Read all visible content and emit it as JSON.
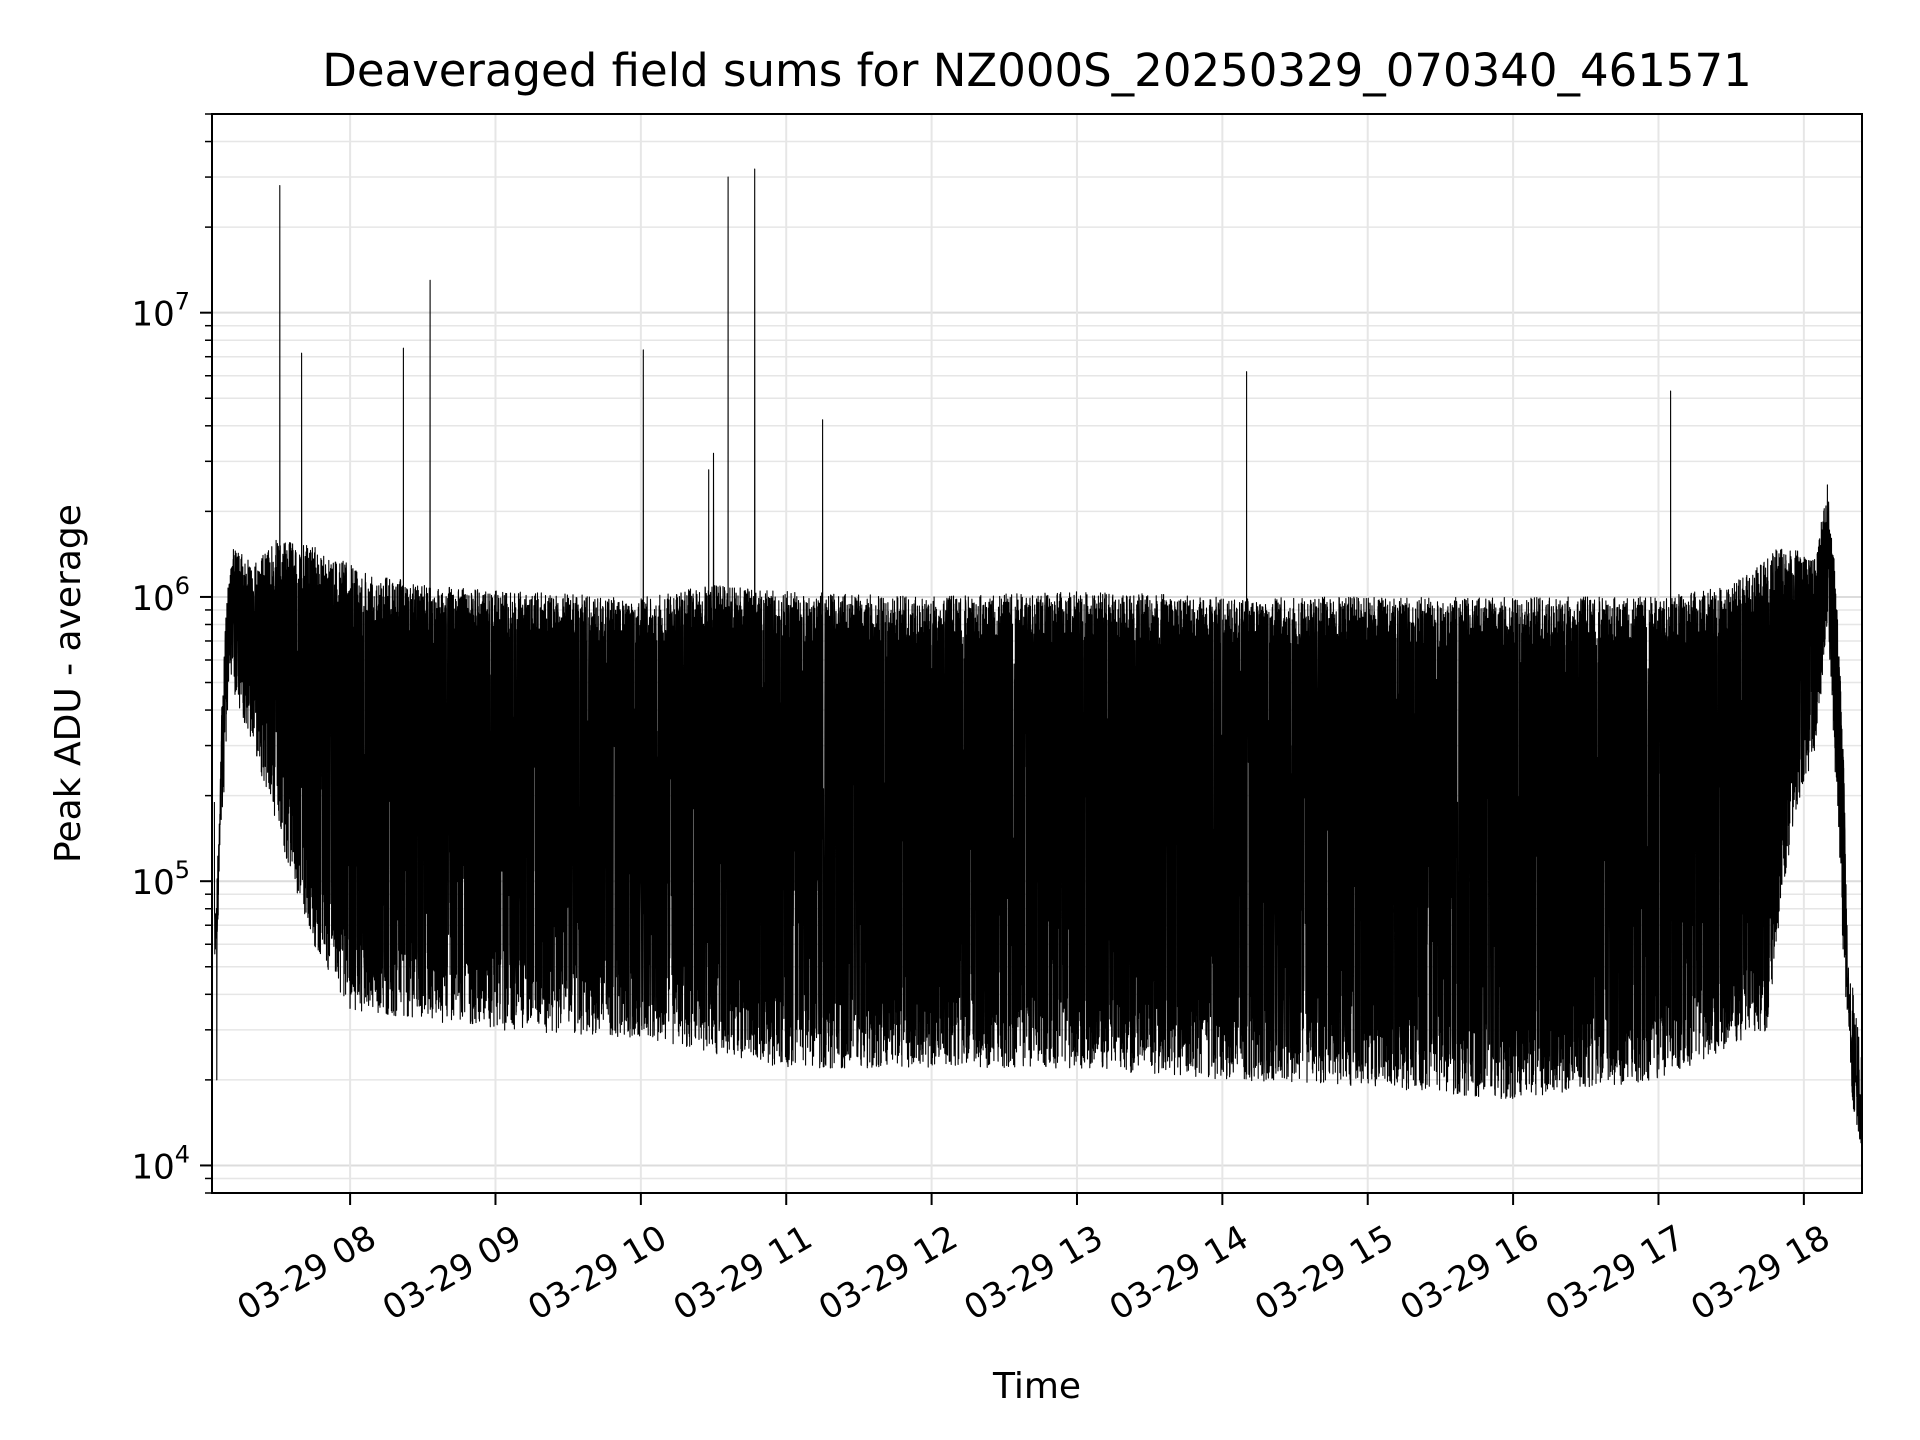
{
  "chart_data": {
    "type": "line",
    "title": "Deaveraged field sums for NZ000S_20250329_070340_461571",
    "xlabel": "Time",
    "ylabel": "Peak ADU - average",
    "y_scale": "log",
    "ylim": [
      8000,
      50000000
    ],
    "xlim": [
      "2025-03-29 07:03",
      "2025-03-29 18:24"
    ],
    "grid": true,
    "line_color": "#000000",
    "x_ticks": [
      {
        "time": "2025-03-29 08:00",
        "label": "03-29 08"
      },
      {
        "time": "2025-03-29 09:00",
        "label": "03-29 09"
      },
      {
        "time": "2025-03-29 10:00",
        "label": "03-29 10"
      },
      {
        "time": "2025-03-29 11:00",
        "label": "03-29 11"
      },
      {
        "time": "2025-03-29 12:00",
        "label": "03-29 12"
      },
      {
        "time": "2025-03-29 13:00",
        "label": "03-29 13"
      },
      {
        "time": "2025-03-29 14:00",
        "label": "03-29 14"
      },
      {
        "time": "2025-03-29 15:00",
        "label": "03-29 15"
      },
      {
        "time": "2025-03-29 16:00",
        "label": "03-29 16"
      },
      {
        "time": "2025-03-29 17:00",
        "label": "03-29 17"
      },
      {
        "time": "2025-03-29 18:00",
        "label": "03-29 18"
      }
    ],
    "y_ticks": [
      {
        "value": 10000,
        "base": "10",
        "exp": "4"
      },
      {
        "value": 100000,
        "base": "10",
        "exp": "5"
      },
      {
        "value": 1000000,
        "base": "10",
        "exp": "6"
      },
      {
        "value": 10000000,
        "base": "10",
        "exp": "7"
      }
    ],
    "series": [
      {
        "upper_envelope": [
          [
            "2025-03-29 07:05",
            80000
          ],
          [
            "2025-03-29 07:07",
            400000
          ],
          [
            "2025-03-29 07:09",
            1000000
          ],
          [
            "2025-03-29 07:12",
            1500000
          ],
          [
            "2025-03-29 07:20",
            1300000
          ],
          [
            "2025-03-29 07:30",
            1600000
          ],
          [
            "2025-03-29 07:45",
            1500000
          ],
          [
            "2025-03-29 08:00",
            1300000
          ],
          [
            "2025-03-29 08:30",
            1100000
          ],
          [
            "2025-03-29 09:00",
            1050000
          ],
          [
            "2025-03-29 10:00",
            1000000
          ],
          [
            "2025-03-29 10:30",
            1100000
          ],
          [
            "2025-03-29 11:00",
            1050000
          ],
          [
            "2025-03-29 12:00",
            1000000
          ],
          [
            "2025-03-29 13:00",
            1050000
          ],
          [
            "2025-03-29 14:00",
            1000000
          ],
          [
            "2025-03-29 15:00",
            1000000
          ],
          [
            "2025-03-29 16:00",
            1000000
          ],
          [
            "2025-03-29 17:00",
            1000000
          ],
          [
            "2025-03-29 17:30",
            1100000
          ],
          [
            "2025-03-29 17:50",
            1500000
          ],
          [
            "2025-03-29 18:05",
            1400000
          ],
          [
            "2025-03-29 18:10",
            2600000
          ],
          [
            "2025-03-29 18:13",
            1200000
          ],
          [
            "2025-03-29 18:16",
            400000
          ],
          [
            "2025-03-29 18:18",
            60000
          ],
          [
            "2025-03-29 18:20",
            25000
          ],
          [
            "2025-03-29 18:24",
            17000
          ]
        ],
        "lower_envelope": [
          [
            "2025-03-29 07:05",
            60000
          ],
          [
            "2025-03-29 07:10",
            500000
          ],
          [
            "2025-03-29 07:20",
            300000
          ],
          [
            "2025-03-29 07:30",
            150000
          ],
          [
            "2025-03-29 07:45",
            60000
          ],
          [
            "2025-03-29 08:00",
            35000
          ],
          [
            "2025-03-29 09:00",
            30000
          ],
          [
            "2025-03-29 10:00",
            28000
          ],
          [
            "2025-03-29 11:00",
            22000
          ],
          [
            "2025-03-29 12:00",
            22000
          ],
          [
            "2025-03-29 13:00",
            22000
          ],
          [
            "2025-03-29 14:00",
            20000
          ],
          [
            "2025-03-29 15:00",
            19000
          ],
          [
            "2025-03-29 16:00",
            17000
          ],
          [
            "2025-03-29 17:00",
            20000
          ],
          [
            "2025-03-29 17:45",
            30000
          ],
          [
            "2025-03-29 17:55",
            150000
          ],
          [
            "2025-03-29 18:05",
            300000
          ],
          [
            "2025-03-29 18:10",
            800000
          ],
          [
            "2025-03-29 18:14",
            150000
          ],
          [
            "2025-03-29 18:17",
            40000
          ],
          [
            "2025-03-29 18:24",
            13000
          ]
        ],
        "spikes": [
          [
            "2025-03-29 07:04",
            190000
          ],
          [
            "2025-03-29 07:05",
            20000
          ],
          [
            "2025-03-29 07:31",
            28000000
          ],
          [
            "2025-03-29 07:40",
            7200000
          ],
          [
            "2025-03-29 08:22",
            7500000
          ],
          [
            "2025-03-29 08:33",
            13000000
          ],
          [
            "2025-03-29 10:01",
            7400000
          ],
          [
            "2025-03-29 10:28",
            2800000
          ],
          [
            "2025-03-29 10:30",
            3200000
          ],
          [
            "2025-03-29 10:36",
            30000000
          ],
          [
            "2025-03-29 10:47",
            32000000
          ],
          [
            "2025-03-29 11:15",
            4200000
          ],
          [
            "2025-03-29 14:10",
            6200000
          ],
          [
            "2025-03-29 17:05",
            5300000
          ]
        ]
      }
    ]
  }
}
